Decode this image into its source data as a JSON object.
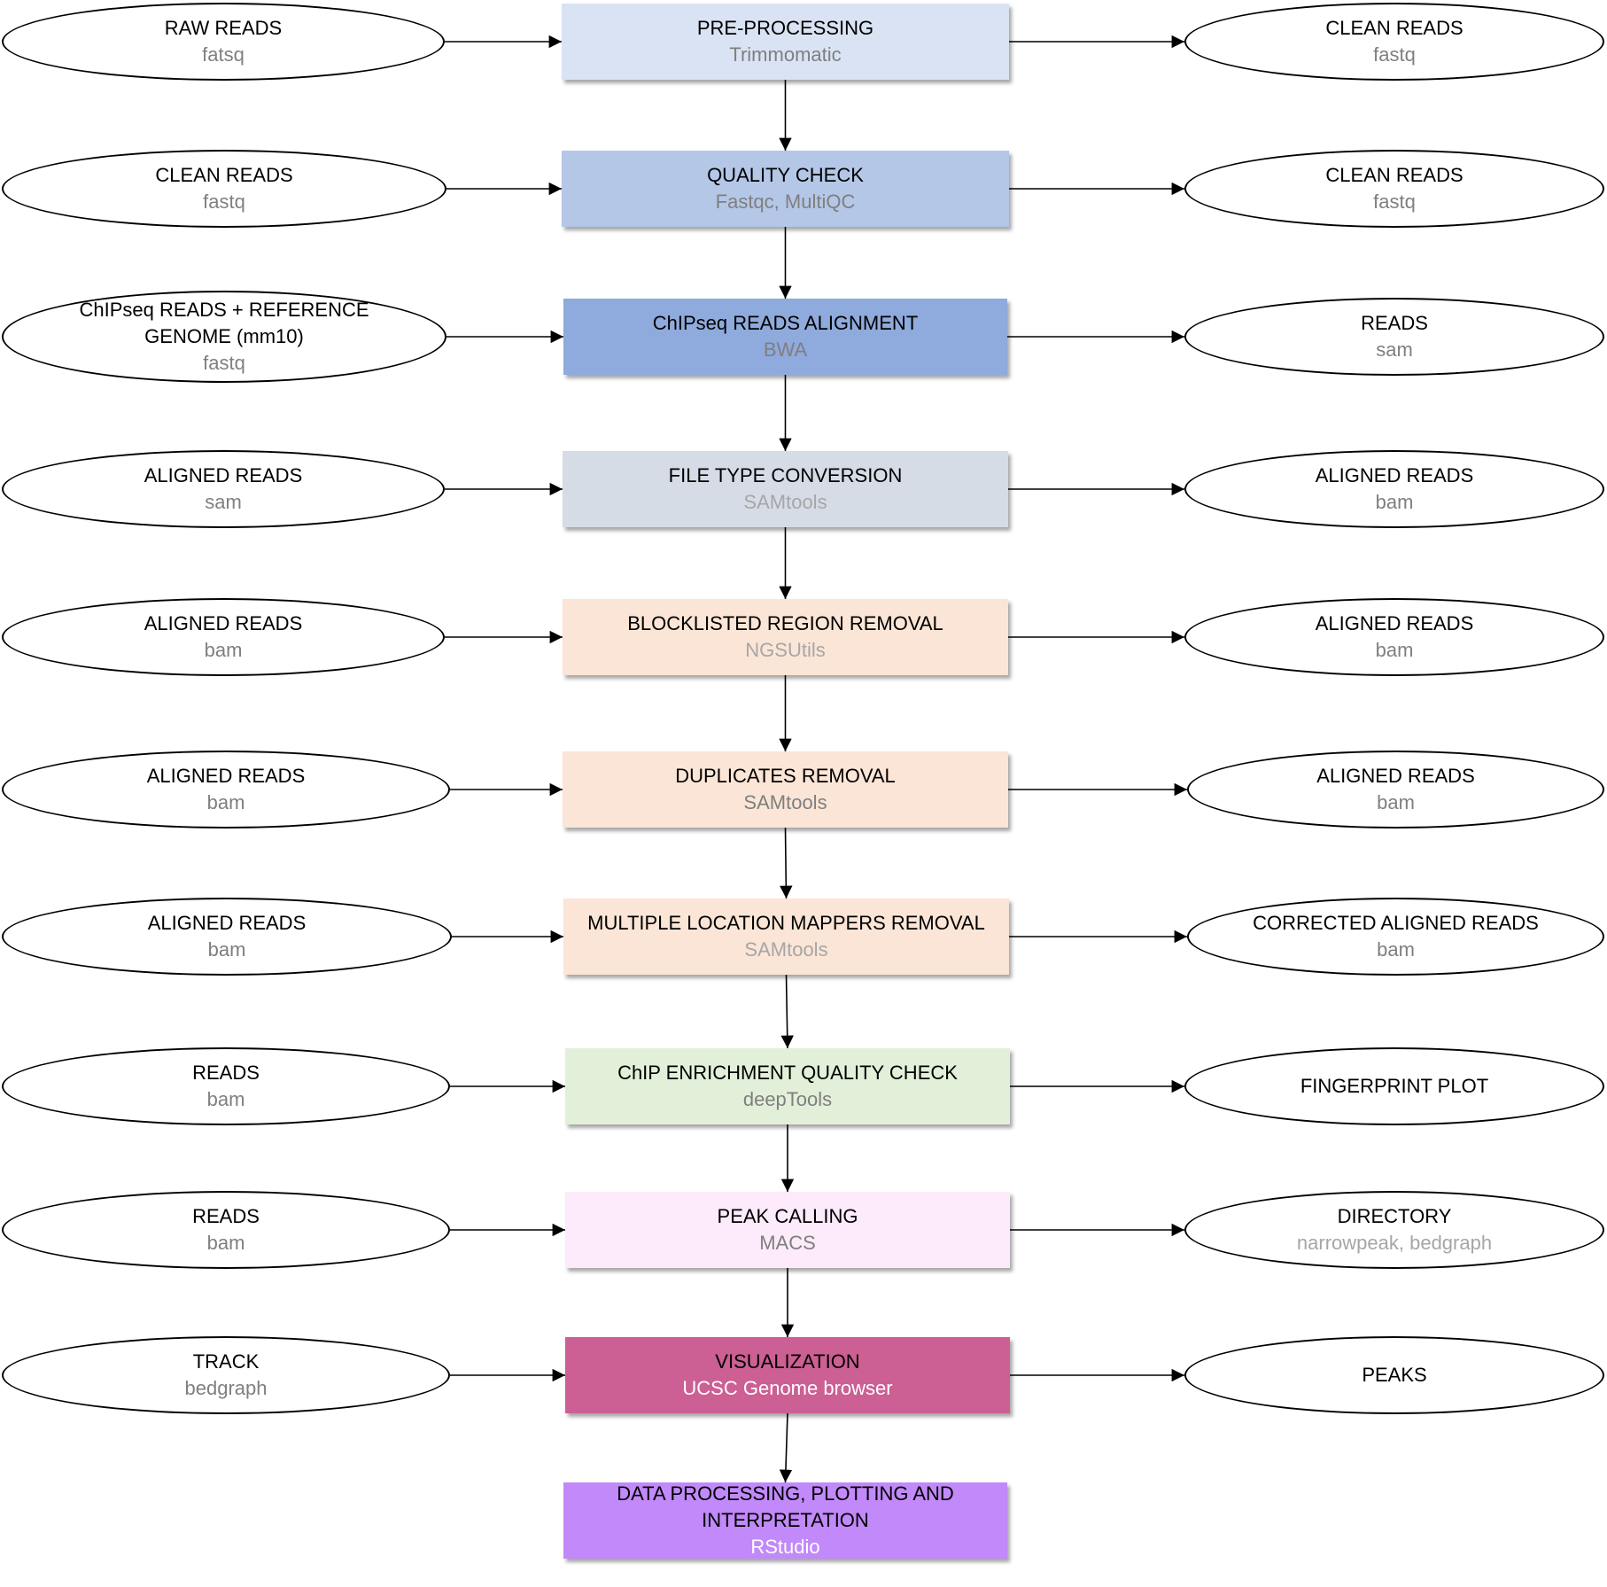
{
  "steps": [
    {
      "title": "PRE-PROCESSING",
      "tool": "Trimmomatic",
      "color": "#dae3f3",
      "tool_color": "gray",
      "input": {
        "lines": [
          "RAW READS"
        ],
        "fmt": "fatsq"
      },
      "output": {
        "lines": [
          "CLEAN READS"
        ],
        "fmt": "fastq"
      }
    },
    {
      "title": "QUALITY CHECK",
      "tool": "Fastqc, MultiQC",
      "color": "#b4c7e7",
      "tool_color": "gray",
      "input": {
        "lines": [
          "CLEAN READS"
        ],
        "fmt": "fastq"
      },
      "output": {
        "lines": [
          "CLEAN READS"
        ],
        "fmt": "fastq"
      }
    },
    {
      "title": "ChIPseq READS  ALIGNMENT",
      "tool": "BWA",
      "color": "#8faadc",
      "tool_color": "gray",
      "input": {
        "lines": [
          "ChIPseq READS + REFERENCE",
          "GENOME (mm10)"
        ],
        "fmt": "fastq"
      },
      "output": {
        "lines": [
          "READS"
        ],
        "fmt": "sam"
      }
    },
    {
      "title": "FILE TYPE CONVERSION",
      "tool": "SAMtools",
      "color": "#d6dce5",
      "tool_color": "light",
      "input": {
        "lines": [
          "ALIGNED READS"
        ],
        "fmt": "sam"
      },
      "output": {
        "lines": [
          "ALIGNED READS"
        ],
        "fmt": "bam"
      }
    },
    {
      "title": "BLOCKLISTED REGION REMOVAL",
      "tool": "NGSUtils",
      "color": "#fbe5d6",
      "tool_color": "light",
      "input": {
        "lines": [
          "ALIGNED READS"
        ],
        "fmt": "bam"
      },
      "output": {
        "lines": [
          "ALIGNED READS"
        ],
        "fmt": "bam"
      }
    },
    {
      "title": "DUPLICATES REMOVAL",
      "tool": "SAMtools",
      "color": "#fbe5d6",
      "tool_color": "gray",
      "input": {
        "lines": [
          "ALIGNED READS"
        ],
        "fmt": "bam"
      },
      "output": {
        "lines": [
          "ALIGNED READS"
        ],
        "fmt": "bam"
      }
    },
    {
      "title": "MULTIPLE LOCATION MAPPERS REMOVAL",
      "tool": "SAMtools",
      "color": "#fbe5d6",
      "tool_color": "light",
      "input": {
        "lines": [
          "ALIGNED READS"
        ],
        "fmt": "bam"
      },
      "output": {
        "lines": [
          "CORRECTED ALIGNED READS"
        ],
        "fmt": "bam"
      }
    },
    {
      "title": "ChIP ENRICHMENT QUALITY CHECK",
      "tool": "deepTools",
      "color": "#e2f0d9",
      "tool_color": "gray",
      "input": {
        "lines": [
          "READS"
        ],
        "fmt": "bam"
      },
      "output": {
        "lines": [
          "FINGERPRINT PLOT"
        ],
        "fmt": ""
      }
    },
    {
      "title": "PEAK CALLING",
      "tool": "MACS",
      "color": "#fdeafa",
      "tool_color": "gray",
      "input": {
        "lines": [
          "READS"
        ],
        "fmt": "bam"
      },
      "output": {
        "lines": [
          "DIRECTORY"
        ],
        "fmt": "narrowpeak, bedgraph",
        "fmt_color": "light"
      }
    },
    {
      "title": "VISUALIZATION",
      "tool": "UCSC Genome browser",
      "color": "#cc5f93",
      "tool_color": "white",
      "input": {
        "lines": [
          "TRACK"
        ],
        "fmt": "bedgraph"
      },
      "output": {
        "lines": [
          "PEAKS"
        ],
        "fmt": ""
      }
    },
    {
      "title_lines": [
        "DATA PROCESSING, PLOTTING AND",
        "INTERPRETATION"
      ],
      "tool": "RStudio",
      "color": "#c189f9",
      "tool_color": "white",
      "input": null,
      "output": null
    }
  ]
}
